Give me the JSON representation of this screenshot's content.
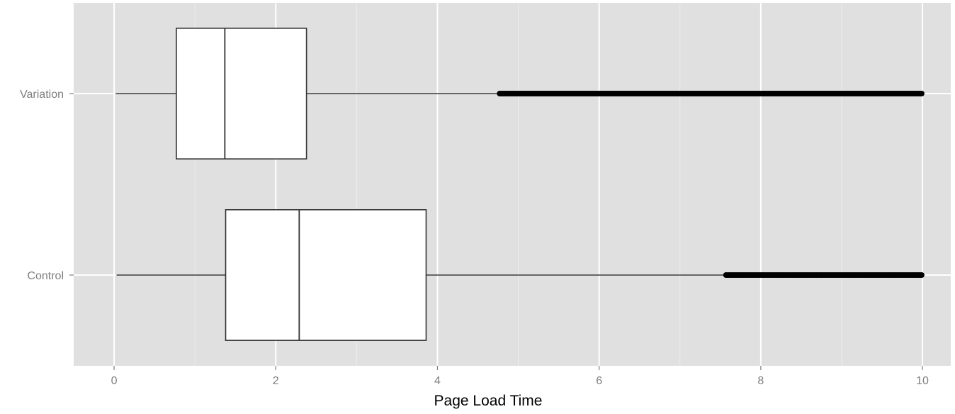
{
  "chart_data": {
    "type": "boxplot",
    "orientation": "horizontal",
    "title": "",
    "xlabel": "Page Load Time",
    "ylabel": "",
    "xlim": [
      -0.5,
      10.35
    ],
    "x_ticks": [
      0,
      2,
      4,
      6,
      8,
      10
    ],
    "x_tick_labels": [
      "0",
      "2",
      "4",
      "6",
      "8",
      "10"
    ],
    "x_minor_ticks": [
      1,
      3,
      5,
      7,
      9
    ],
    "categories": [
      "Variation",
      "Control"
    ],
    "boxes": [
      {
        "category": "Variation",
        "whisker_low": 0.02,
        "q1": 0.77,
        "median": 1.37,
        "q3": 2.38,
        "whisker_high": 4.77,
        "outliers_from": 4.77,
        "outliers_to": 10.0
      },
      {
        "category": "Control",
        "whisker_low": 0.03,
        "q1": 1.38,
        "median": 2.29,
        "q3": 3.86,
        "whisker_high": 7.57,
        "outliers_from": 7.57,
        "outliers_to": 10.0
      }
    ],
    "grid": true,
    "legend": "none",
    "colors": {
      "panel_background": "#e0e0e0",
      "grid_line": "#ffffff",
      "box_fill": "#ffffff",
      "box_stroke": "#333333",
      "outlier": "#000000",
      "tick_label": "#7f7f7f",
      "axis_title": "#000000"
    }
  }
}
